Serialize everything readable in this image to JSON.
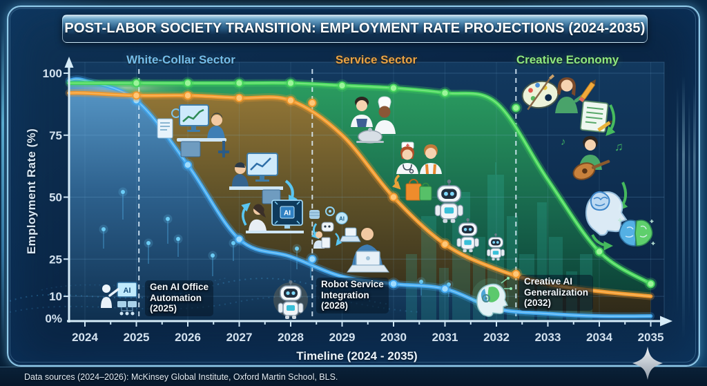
{
  "title": "POST-LABOR SOCIETY TRANSITION: EMPLOYMENT RATE PROJECTIONS (2024-2035)",
  "sections": [
    {
      "label": "White-Collar Sector",
      "color": "#74bdea"
    },
    {
      "label": "Service Sector",
      "color": "#e9a344"
    },
    {
      "label": "Creative Economy",
      "color": "#8fe87f"
    }
  ],
  "chart_data": {
    "type": "line",
    "title": "Post-Labor Society Transition: Employment Rate Projections (2024-2035)",
    "xlabel": "Timeline (2024 - 2035)",
    "ylabel": "Employment Rate (%)",
    "x": [
      2024,
      2025,
      2026,
      2027,
      2028,
      2029,
      2030,
      2031,
      2032,
      2033,
      2034,
      2035
    ],
    "ylim": [
      0,
      100
    ],
    "yticks": [
      {
        "value": 0,
        "label": "0%"
      },
      {
        "value": 10,
        "label": "10"
      },
      {
        "value": 25,
        "label": "25"
      },
      {
        "value": 50,
        "label": "50"
      },
      {
        "value": 75,
        "label": "75"
      },
      {
        "value": 100,
        "label": "100"
      }
    ],
    "grid": true,
    "legend_position": "top",
    "series": [
      {
        "name": "White-Collar Sector",
        "color": "#42a7ee",
        "marker_color": "#9fdcff",
        "values": [
          97,
          89,
          63,
          33,
          26,
          18,
          15,
          13,
          5,
          3,
          2,
          2
        ],
        "markers": [
          [
            2025,
            89
          ],
          [
            2026,
            63
          ],
          [
            2027,
            33
          ],
          [
            2028.42,
            25
          ],
          [
            2030,
            15
          ],
          [
            2031,
            13
          ]
        ]
      },
      {
        "name": "Service Sector",
        "color": "#f0992e",
        "marker_color": "#ffc878",
        "values": [
          92,
          91,
          91,
          90,
          89,
          75,
          50,
          31,
          21,
          15,
          12,
          10
        ],
        "markers": [
          [
            2025,
            91
          ],
          [
            2026,
            91
          ],
          [
            2027,
            90
          ],
          [
            2028,
            89
          ],
          [
            2028.42,
            88
          ],
          [
            2030,
            50
          ],
          [
            2031,
            31
          ],
          [
            2032.38,
            19
          ]
        ]
      },
      {
        "name": "Creative Economy",
        "color": "#45d35c",
        "marker_color": "#9bf59a",
        "values": [
          96,
          96,
          96,
          96,
          96,
          95,
          94,
          92,
          88,
          57,
          28,
          15
        ],
        "markers": [
          [
            2025,
            96
          ],
          [
            2026,
            96
          ],
          [
            2027,
            96
          ],
          [
            2028,
            96
          ],
          [
            2029,
            95
          ],
          [
            2030,
            94
          ],
          [
            2031,
            92
          ],
          [
            2032.38,
            86
          ],
          [
            2034,
            28
          ],
          [
            2035,
            15
          ]
        ]
      }
    ],
    "milestones": [
      2025.05,
      2028.42,
      2032.38
    ]
  },
  "annotations": [
    {
      "line1": "Gen AI Office",
      "line2": "Automation",
      "line3": "(2025)",
      "icon": "gen-ai-office-automation-icon"
    },
    {
      "line1": "Robot Service",
      "line2": "Integration",
      "line3": "(2028)",
      "icon": "robot-service-integration-icon"
    },
    {
      "line1": "Creative AI",
      "line2": "Generalization",
      "line3": "(2032)",
      "icon": "creative-ai-generalization-icon"
    }
  ],
  "icon_text": {
    "ai": "AI",
    "note1": "♪",
    "note2": "♫"
  },
  "footer": "Data sources (2024–2026): McKinsey Global Institute, Oxford Martin School, BLS."
}
